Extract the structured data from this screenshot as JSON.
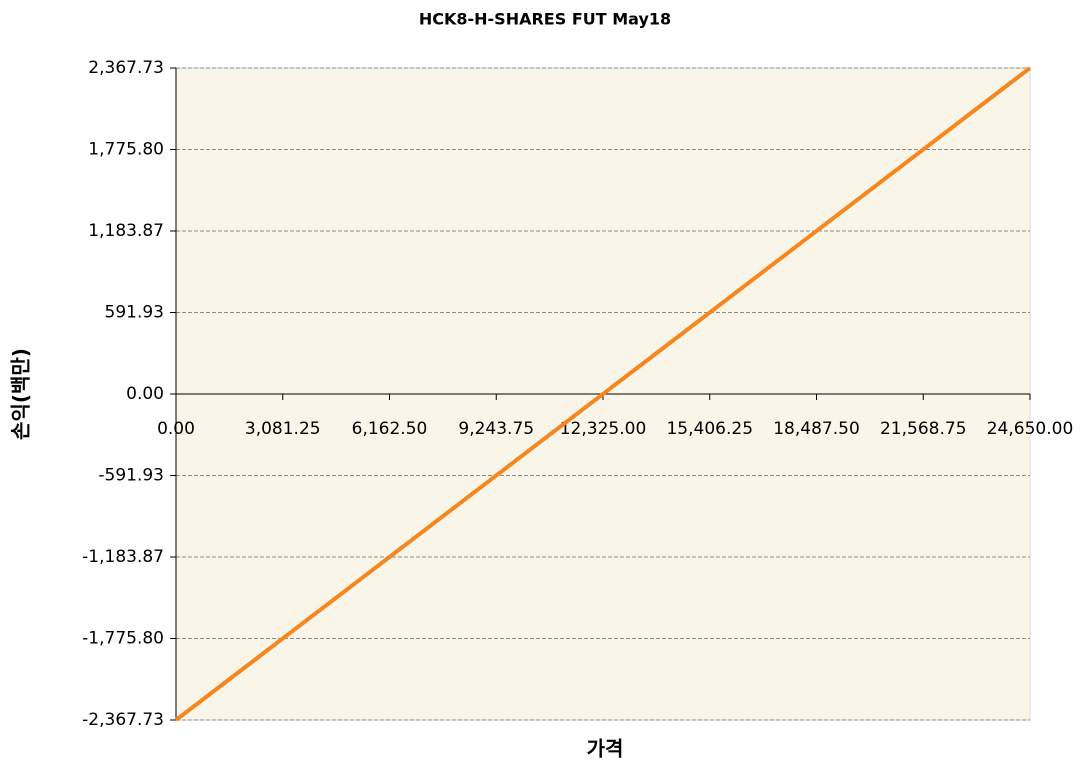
{
  "chart_data": {
    "type": "line",
    "title": "HCK8-H-SHARES FUT May18",
    "x_label": "가격",
    "y_label": "손익(백만)",
    "x": [
      0,
      24650
    ],
    "series": [
      {
        "name": "손익",
        "color": "#f7861e",
        "values": [
          -2367.73,
          2367.73
        ]
      }
    ],
    "xlim": [
      0,
      24650
    ],
    "xticks": [
      {
        "value": 0,
        "label": "0.00"
      },
      {
        "value": 3081.25,
        "label": "3,081.25"
      },
      {
        "value": 6162.5,
        "label": "6,162.50"
      },
      {
        "value": 9243.75,
        "label": "9,243.75"
      },
      {
        "value": 12325,
        "label": "12,325.00"
      },
      {
        "value": 15406.25,
        "label": "15,406.25"
      },
      {
        "value": 18487.5,
        "label": "18,487.50"
      },
      {
        "value": 21568.75,
        "label": "21,568.75"
      },
      {
        "value": 24650,
        "label": "24,650.00"
      }
    ],
    "ylim": [
      -2367.73,
      2367.73
    ],
    "yticks": [
      {
        "value": -2367.73,
        "label": "-2,367.73"
      },
      {
        "value": -1775.8,
        "label": "-1,775.80"
      },
      {
        "value": -1183.87,
        "label": "-1,183.87"
      },
      -591.93,
      {
        "value": 0,
        "label": "0.00"
      },
      591.93,
      {
        "value": 1183.87,
        "label": "1,183.87"
      },
      {
        "value": 1775.8,
        "label": "1,775.80"
      },
      {
        "value": 2367.73,
        "label": "2,367.73"
      }
    ],
    "grid": true,
    "plot_background": "#f9f6e9"
  }
}
